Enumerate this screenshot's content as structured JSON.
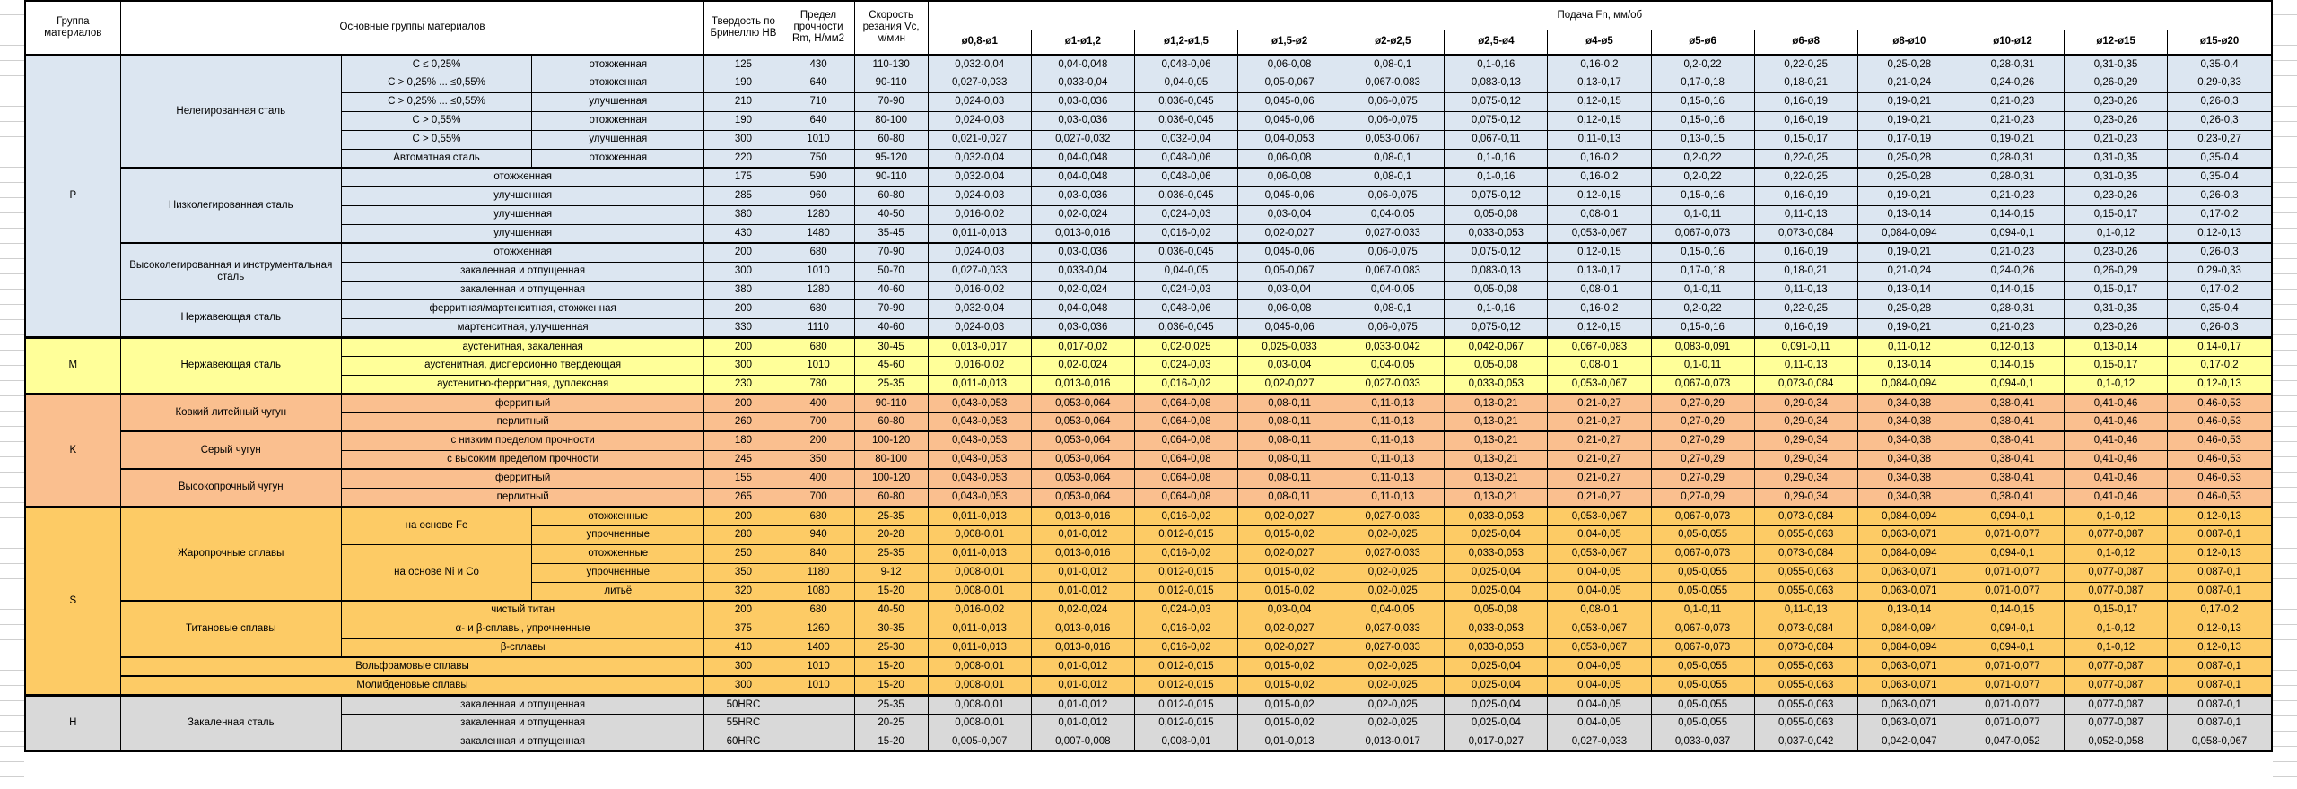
{
  "table": {
    "header": {
      "group": "Группа материалов",
      "materials": "Основные группы материалов",
      "hardness": "Твердость по Бринеллю HB",
      "strength": "Предел прочности Rm, Н/мм2",
      "speed": "Скорость резания Vc, м/мин",
      "feed": "Подача Fn, мм/об",
      "diameters": [
        "ø0,8-ø1",
        "ø1-ø1,2",
        "ø1,2-ø1,5",
        "ø1,5-ø2",
        "ø2-ø2,5",
        "ø2,5-ø4",
        "ø4-ø5",
        "ø5-ø6",
        "ø6-ø8",
        "ø8-ø10",
        "ø10-ø12",
        "ø12-ø15",
        "ø15-ø20"
      ]
    },
    "feed_patterns": {
      "A": [
        "0,032-0,04",
        "0,04-0,048",
        "0,048-0,06",
        "0,06-0,08",
        "0,08-0,1",
        "0,1-0,16",
        "0,16-0,2",
        "0,2-0,22",
        "0,22-0,25",
        "0,25-0,28",
        "0,28-0,31",
        "0,31-0,35",
        "0,35-0,4"
      ],
      "B": [
        "0,027-0,033",
        "0,033-0,04",
        "0,04-0,05",
        "0,05-0,067",
        "0,067-0,083",
        "0,083-0,13",
        "0,13-0,17",
        "0,17-0,18",
        "0,18-0,21",
        "0,21-0,24",
        "0,24-0,26",
        "0,26-0,29",
        "0,29-0,33"
      ],
      "C": [
        "0,024-0,03",
        "0,03-0,036",
        "0,036-0,045",
        "0,045-0,06",
        "0,06-0,075",
        "0,075-0,12",
        "0,12-0,15",
        "0,15-0,16",
        "0,16-0,19",
        "0,19-0,21",
        "0,21-0,23",
        "0,23-0,26",
        "0,26-0,3"
      ],
      "D": [
        "0,021-0,027",
        "0,027-0,032",
        "0,032-0,04",
        "0,04-0,053",
        "0,053-0,067",
        "0,067-0,11",
        "0,11-0,13",
        "0,13-0,15",
        "0,15-0,17",
        "0,17-0,19",
        "0,19-0,21",
        "0,21-0,23",
        "0,23-0,27"
      ],
      "E": [
        "0,016-0,02",
        "0,02-0,024",
        "0,024-0,03",
        "0,03-0,04",
        "0,04-0,05",
        "0,05-0,08",
        "0,08-0,1",
        "0,1-0,11",
        "0,11-0,13",
        "0,13-0,14",
        "0,14-0,15",
        "0,15-0,17",
        "0,17-0,2"
      ],
      "F": [
        "0,011-0,013",
        "0,013-0,016",
        "0,016-0,02",
        "0,02-0,027",
        "0,027-0,033",
        "0,033-0,053",
        "0,053-0,067",
        "0,067-0,073",
        "0,073-0,084",
        "0,084-0,094",
        "0,094-0,1",
        "0,1-0,12",
        "0,12-0,13"
      ],
      "G": [
        "0,013-0,017",
        "0,017-0,02",
        "0,02-0,025",
        "0,025-0,033",
        "0,033-0,042",
        "0,042-0,067",
        "0,067-0,083",
        "0,083-0,091",
        "0,091-0,11",
        "0,11-0,12",
        "0,12-0,13",
        "0,13-0,14",
        "0,14-0,17"
      ],
      "K": [
        "0,043-0,053",
        "0,053-0,064",
        "0,064-0,08",
        "0,08-0,11",
        "0,11-0,13",
        "0,13-0,21",
        "0,21-0,27",
        "0,27-0,29",
        "0,29-0,34",
        "0,34-0,38",
        "0,38-0,41",
        "0,41-0,46",
        "0,46-0,53"
      ],
      "H8": [
        "0,008-0,01",
        "0,01-0,012",
        "0,012-0,015",
        "0,015-0,02",
        "0,02-0,025",
        "0,025-0,04",
        "0,04-0,05",
        "0,05-0,055",
        "0,055-0,063",
        "0,063-0,071",
        "0,071-0,077",
        "0,077-0,087",
        "0,087-0,1"
      ],
      "H5": [
        "0,005-0,007",
        "0,007-0,008",
        "0,008-0,01",
        "0,01-0,013",
        "0,013-0,017",
        "0,017-0,027",
        "0,027-0,033",
        "0,033-0,037",
        "0,037-0,042",
        "0,042-0,047",
        "0,047-0,052",
        "0,052-0,058",
        "0,058-0,067"
      ]
    },
    "groups": [
      {
        "code": "P",
        "color": "#DCE6F1",
        "families": [
          {
            "name": "Нелегированная сталь",
            "rows": [
              {
                "sub": "C ≤ 0,25%",
                "state": "отожженная",
                "hb": "125",
                "rm": "430",
                "vc": "110-130",
                "feeds": "A"
              },
              {
                "sub": "C > 0,25% ... ≤0,55%",
                "state": "отожженная",
                "hb": "190",
                "rm": "640",
                "vc": "90-110",
                "feeds": "B"
              },
              {
                "sub": "C > 0,25% ... ≤0,55%",
                "state": "улучшенная",
                "hb": "210",
                "rm": "710",
                "vc": "70-90",
                "feeds": "C"
              },
              {
                "sub": "C > 0,55%",
                "state": "отожженная",
                "hb": "190",
                "rm": "640",
                "vc": "80-100",
                "feeds": "C"
              },
              {
                "sub": "C > 0,55%",
                "state": "улучшенная",
                "hb": "300",
                "rm": "1010",
                "vc": "60-80",
                "feeds": "D"
              },
              {
                "sub": "Автоматная сталь",
                "state": "отожженная",
                "hb": "220",
                "rm": "750",
                "vc": "95-120",
                "feeds": "A"
              }
            ]
          },
          {
            "name": "Низколегированная сталь",
            "rows": [
              {
                "merged": "отожженная",
                "hb": "175",
                "rm": "590",
                "vc": "90-110",
                "feeds": "A"
              },
              {
                "merged": "улучшенная",
                "hb": "285",
                "rm": "960",
                "vc": "60-80",
                "feeds": "C"
              },
              {
                "merged": "улучшенная",
                "hb": "380",
                "rm": "1280",
                "vc": "40-50",
                "feeds": "E"
              },
              {
                "merged": "улучшенная",
                "hb": "430",
                "rm": "1480",
                "vc": "35-45",
                "feeds": "F"
              }
            ]
          },
          {
            "name": "Высоколегированная и инструментальная сталь",
            "rows": [
              {
                "merged": "отожженная",
                "hb": "200",
                "rm": "680",
                "vc": "70-90",
                "feeds": "C"
              },
              {
                "merged": "закаленная и отпущенная",
                "hb": "300",
                "rm": "1010",
                "vc": "50-70",
                "feeds": "B"
              },
              {
                "merged": "закаленная и отпущенная",
                "hb": "380",
                "rm": "1280",
                "vc": "40-60",
                "feeds": "E"
              }
            ]
          },
          {
            "name": "Нержавеющая сталь",
            "rows": [
              {
                "merged": "ферритная/мартенситная, отожженная",
                "hb": "200",
                "rm": "680",
                "vc": "70-90",
                "feeds": "A"
              },
              {
                "merged": "мартенситная, улучшенная",
                "hb": "330",
                "rm": "1110",
                "vc": "40-60",
                "feeds": "C"
              }
            ]
          }
        ]
      },
      {
        "code": "M",
        "color": "#FFFF99",
        "families": [
          {
            "name": "Нержавеющая сталь",
            "rows": [
              {
                "merged": "аустенитная, закаленная",
                "hb": "200",
                "rm": "680",
                "vc": "30-45",
                "feeds": "G"
              },
              {
                "merged": "аустенитная, дисперсионно твердеющая",
                "hb": "300",
                "rm": "1010",
                "vc": "45-60",
                "feeds": "E"
              },
              {
                "merged": "аустенитно-ферритная, дуплексная",
                "hb": "230",
                "rm": "780",
                "vc": "25-35",
                "feeds": "F"
              }
            ]
          }
        ]
      },
      {
        "code": "K",
        "color": "#FABF8F",
        "families": [
          {
            "name": "Ковкий литейный чугун",
            "rows": [
              {
                "merged": "ферритный",
                "hb": "200",
                "rm": "400",
                "vc": "90-110",
                "feeds": "K"
              },
              {
                "merged": "перлитный",
                "hb": "260",
                "rm": "700",
                "vc": "60-80",
                "feeds": "K"
              }
            ]
          },
          {
            "name": "Серый чугун",
            "rows": [
              {
                "merged": "с низким пределом прочности",
                "hb": "180",
                "rm": "200",
                "vc": "100-120",
                "feeds": "K"
              },
              {
                "merged": "с высоким пределом прочности",
                "hb": "245",
                "rm": "350",
                "vc": "80-100",
                "feeds": "K"
              }
            ]
          },
          {
            "name": "Высокопрочный чугун",
            "rows": [
              {
                "merged": "ферритный",
                "hb": "155",
                "rm": "400",
                "vc": "100-120",
                "feeds": "K"
              },
              {
                "merged": "перлитный",
                "hb": "265",
                "rm": "700",
                "vc": "60-80",
                "feeds": "K"
              }
            ]
          }
        ]
      },
      {
        "code": "S",
        "color": "#FDCB65",
        "families": [
          {
            "name": "Жаропрочные сплавы",
            "rows": [
              {
                "sub": "на основе Fe",
                "sub_rs": 2,
                "state": "отожженные",
                "hb": "200",
                "rm": "680",
                "vc": "25-35",
                "feeds": "F"
              },
              {
                "state": "упрочненные",
                "hb": "280",
                "rm": "940",
                "vc": "20-28",
                "feeds": "H8"
              },
              {
                "sub": "на основе Ni и Co",
                "sub_rs": 3,
                "state": "отожженные",
                "hb": "250",
                "rm": "840",
                "vc": "25-35",
                "feeds": "F"
              },
              {
                "state": "упрочненные",
                "hb": "350",
                "rm": "1180",
                "vc": "9-12",
                "feeds": "H8"
              },
              {
                "state": "литьё",
                "hb": "320",
                "rm": "1080",
                "vc": "15-20",
                "feeds": "H8"
              }
            ]
          },
          {
            "name": "Титановые сплавы",
            "rows": [
              {
                "merged": "чистый титан",
                "hb": "200",
                "rm": "680",
                "vc": "40-50",
                "feeds": "E"
              },
              {
                "merged": "α- и β-сплавы, упрочненные",
                "hb": "375",
                "rm": "1260",
                "vc": "30-35",
                "feeds": "F"
              },
              {
                "merged": "β-сплавы",
                "hb": "410",
                "rm": "1400",
                "vc": "25-30",
                "feeds": "F"
              }
            ]
          },
          {
            "name": "Вольфрамовые сплавы",
            "name_cs": 3,
            "rows": [
              {
                "hb": "300",
                "rm": "1010",
                "vc": "15-20",
                "feeds": "H8"
              }
            ]
          },
          {
            "name": "Молибденовые сплавы",
            "name_cs": 3,
            "rows": [
              {
                "hb": "300",
                "rm": "1010",
                "vc": "15-20",
                "feeds": "H8"
              }
            ]
          }
        ]
      },
      {
        "code": "H",
        "color": "#D9D9D9",
        "families": [
          {
            "name": "Закаленная сталь",
            "rows": [
              {
                "merged": "закаленная и отпущенная",
                "hb": "50HRC",
                "rm": "",
                "vc": "25-35",
                "feeds": "H8"
              },
              {
                "merged": "закаленная и отпущенная",
                "hb": "55HRC",
                "rm": "",
                "vc": "20-25",
                "feeds": "H8"
              },
              {
                "merged": "закаленная и отпущенная",
                "hb": "60HRC",
                "rm": "",
                "vc": "15-20",
                "feeds": "H5"
              }
            ]
          }
        ]
      }
    ]
  }
}
